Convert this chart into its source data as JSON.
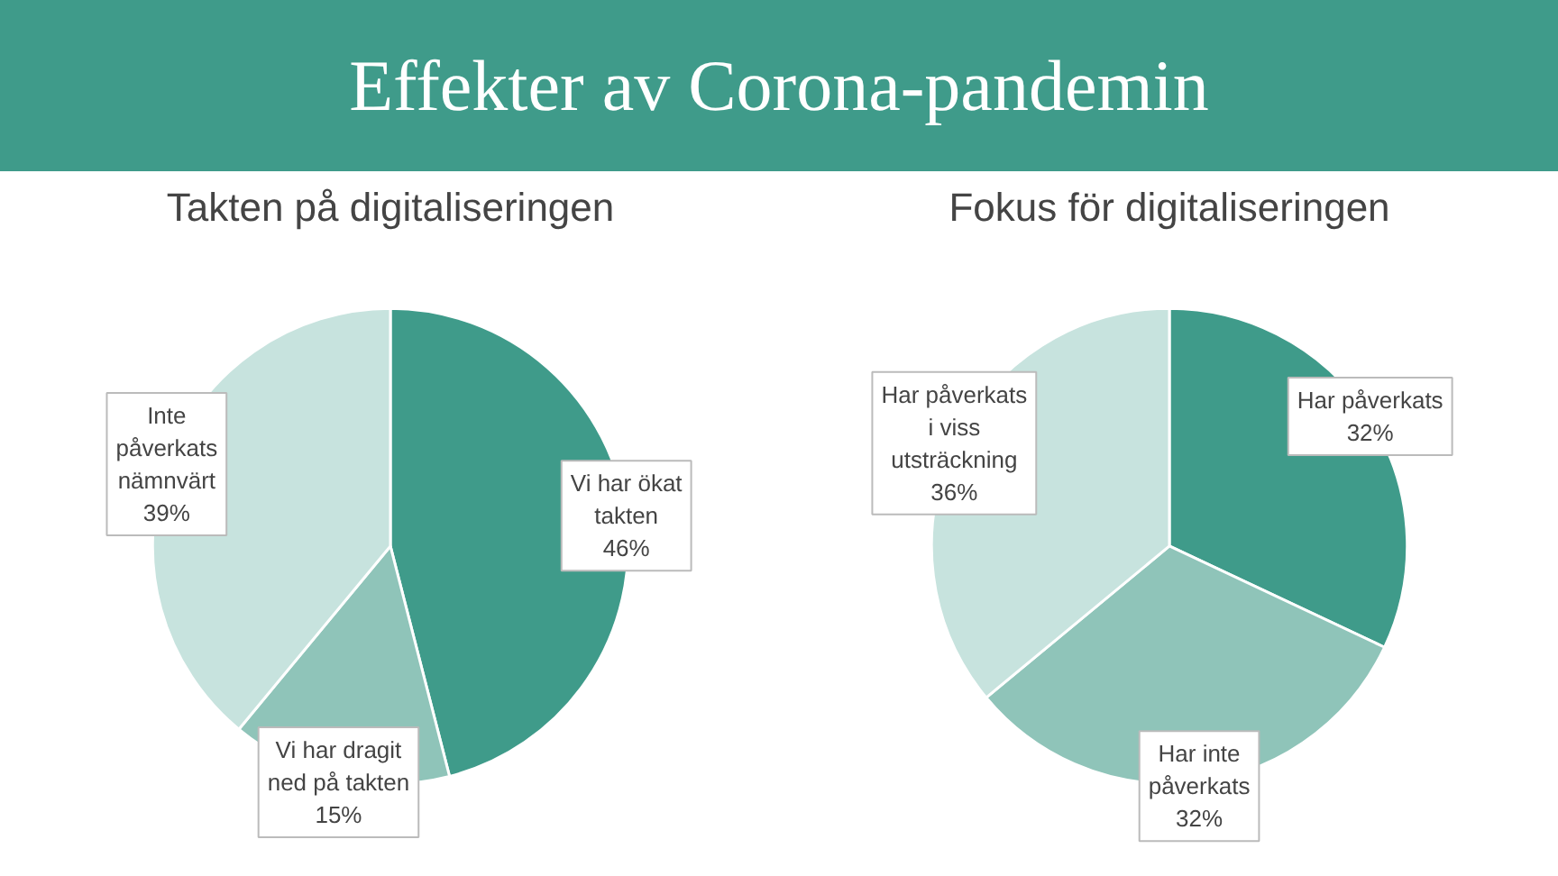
{
  "chart_data": [
    {
      "type": "other",
      "title": "Effekter av Corona-pandemin"
    },
    {
      "type": "pie",
      "title": "Takten på digitaliseringen",
      "categories": [
        "Vi har ökat takten",
        "Vi har dragit ned på takten",
        "Inte påverkats nämnvärt"
      ],
      "values": [
        46,
        15,
        39
      ],
      "colors": [
        "#3f9b8a",
        "#8fc4b9",
        "#c7e3de"
      ],
      "value_labels": [
        "46%",
        "15%",
        "39%"
      ]
    },
    {
      "type": "pie",
      "title": "Fokus för digitaliseringen",
      "categories": [
        "Har påverkats",
        "Har inte påverkats",
        "Har påverkats i viss utsträckning"
      ],
      "values": [
        32,
        32,
        36
      ],
      "colors": [
        "#3f9b8a",
        "#8fc4b9",
        "#c7e3de"
      ],
      "value_labels": [
        "32%",
        "32%",
        "36%"
      ]
    }
  ]
}
